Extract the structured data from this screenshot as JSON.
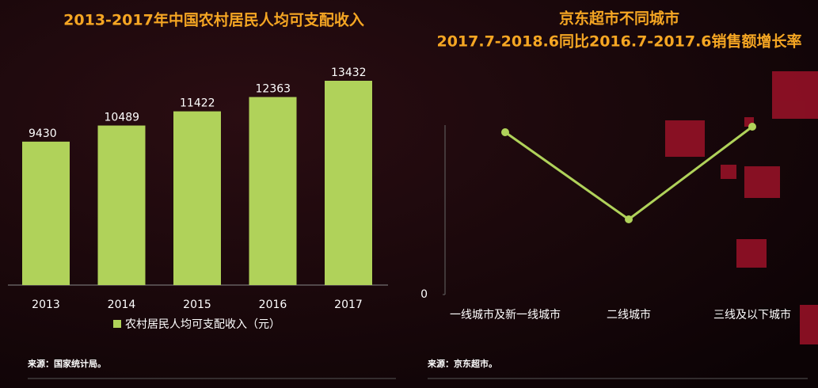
{
  "chart_data": [
    {
      "type": "bar",
      "title": "2013-2017年中国农村居民人均可支配收入",
      "categories": [
        "2013",
        "2014",
        "2015",
        "2016",
        "2017"
      ],
      "series": [
        {
          "name": "农村居民人均可支配收入（元）",
          "color": "#b0d25a",
          "values": [
            9430,
            10489,
            11422,
            12363,
            13432
          ]
        }
      ],
      "source": "来源：国家统计局。"
    },
    {
      "type": "line",
      "title": "京东超市不同城市",
      "subtitle": "2017.7-2018.6同比2016.7-2017.6销售额增长率",
      "categories": [
        "一线城市及新一线城市",
        "二线城市",
        "三线及以下城市"
      ],
      "values": [
        205,
        95,
        212
      ],
      "color": "#b0d25a",
      "ylim": [
        0,
        220
      ],
      "yticks": [
        0
      ],
      "source": "来源：京东超市。"
    }
  ]
}
